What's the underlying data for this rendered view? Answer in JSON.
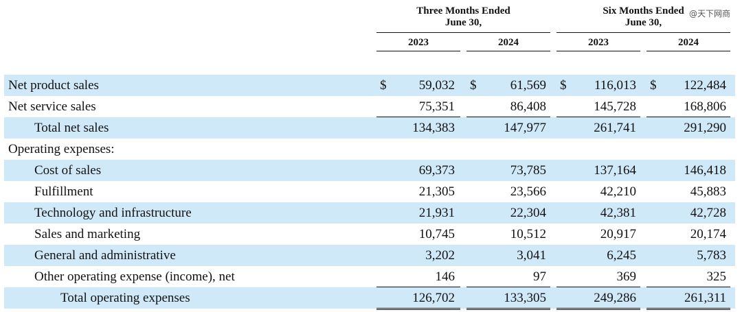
{
  "header": {
    "three_months": "Three Months Ended\nJune 30,",
    "six_months": "Six Months Ended\nJune 30,",
    "years": [
      "2023",
      "2024",
      "2023",
      "2024"
    ]
  },
  "watermark": "@天下网商",
  "currency_symbol": "$",
  "rows": [
    {
      "label": "Net product sales",
      "values": [
        "59,032",
        "61,569",
        "116,013",
        "122,484"
      ]
    },
    {
      "label": "Net service sales",
      "values": [
        "75,351",
        "86,408",
        "145,728",
        "168,806"
      ]
    },
    {
      "label": "Total net sales",
      "values": [
        "134,383",
        "147,977",
        "261,741",
        "291,290"
      ]
    },
    {
      "label": "Operating expenses:",
      "values": [
        "",
        "",
        "",
        ""
      ]
    },
    {
      "label": "Cost of sales",
      "values": [
        "69,373",
        "73,785",
        "137,164",
        "146,418"
      ]
    },
    {
      "label": "Fulfillment",
      "values": [
        "21,305",
        "23,566",
        "42,210",
        "45,883"
      ]
    },
    {
      "label": "Technology and infrastructure",
      "values": [
        "21,931",
        "22,304",
        "42,381",
        "42,728"
      ]
    },
    {
      "label": "Sales and marketing",
      "values": [
        "10,745",
        "10,512",
        "20,917",
        "20,174"
      ]
    },
    {
      "label": "General and administrative",
      "values": [
        "3,202",
        "3,041",
        "6,245",
        "5,783"
      ]
    },
    {
      "label": "Other operating expense (income), net",
      "values": [
        "146",
        "97",
        "369",
        "325"
      ]
    },
    {
      "label": "Total operating expenses",
      "values": [
        "126,702",
        "133,305",
        "249,286",
        "261,311"
      ]
    }
  ]
}
